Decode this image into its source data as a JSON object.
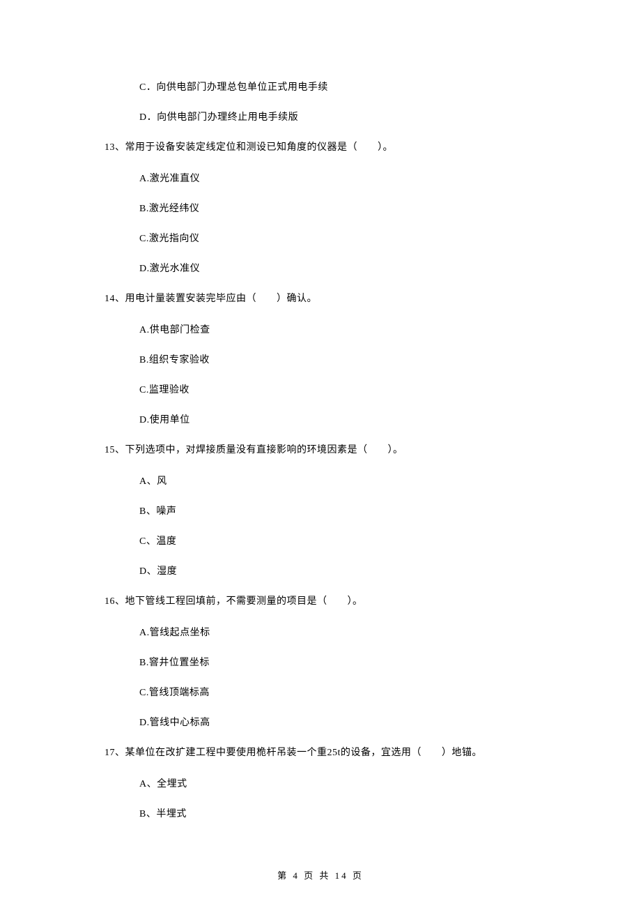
{
  "options_top": [
    "C．向供电部门办理总包单位正式用电手续",
    "D．向供电部门办理终止用电手续版"
  ],
  "questions": [
    {
      "q": "13、常用于设备安装定线定位和测设已知角度的仪器是（　　）。",
      "opts": [
        "A.激光准直仪",
        "B.激光经纬仪",
        "C.激光指向仪",
        "D.激光水准仪"
      ]
    },
    {
      "q": "14、用电计量装置安装完毕应由（　　）确认。",
      "opts": [
        "A.供电部门检查",
        "B.组织专家验收",
        "C.监理验收",
        "D.使用单位"
      ]
    },
    {
      "q": "15、下列选项中，对焊接质量没有直接影响的环境因素是（　　）。",
      "opts": [
        "A、风",
        "B、噪声",
        "C、温度",
        "D、湿度"
      ]
    },
    {
      "q": "16、地下管线工程回填前，不需要测量的项目是（　　）。",
      "opts": [
        "A.管线起点坐标",
        "B.窨井位置坐标",
        "C.管线顶端标高",
        "D.管线中心标高"
      ]
    },
    {
      "q": "17、某单位在改扩建工程中要使用桅杆吊装一个重25t的设备，宜选用（　　）地锚。",
      "opts": [
        "A、全埋式",
        "B、半埋式"
      ]
    }
  ],
  "footer": "第 4 页 共 14 页"
}
